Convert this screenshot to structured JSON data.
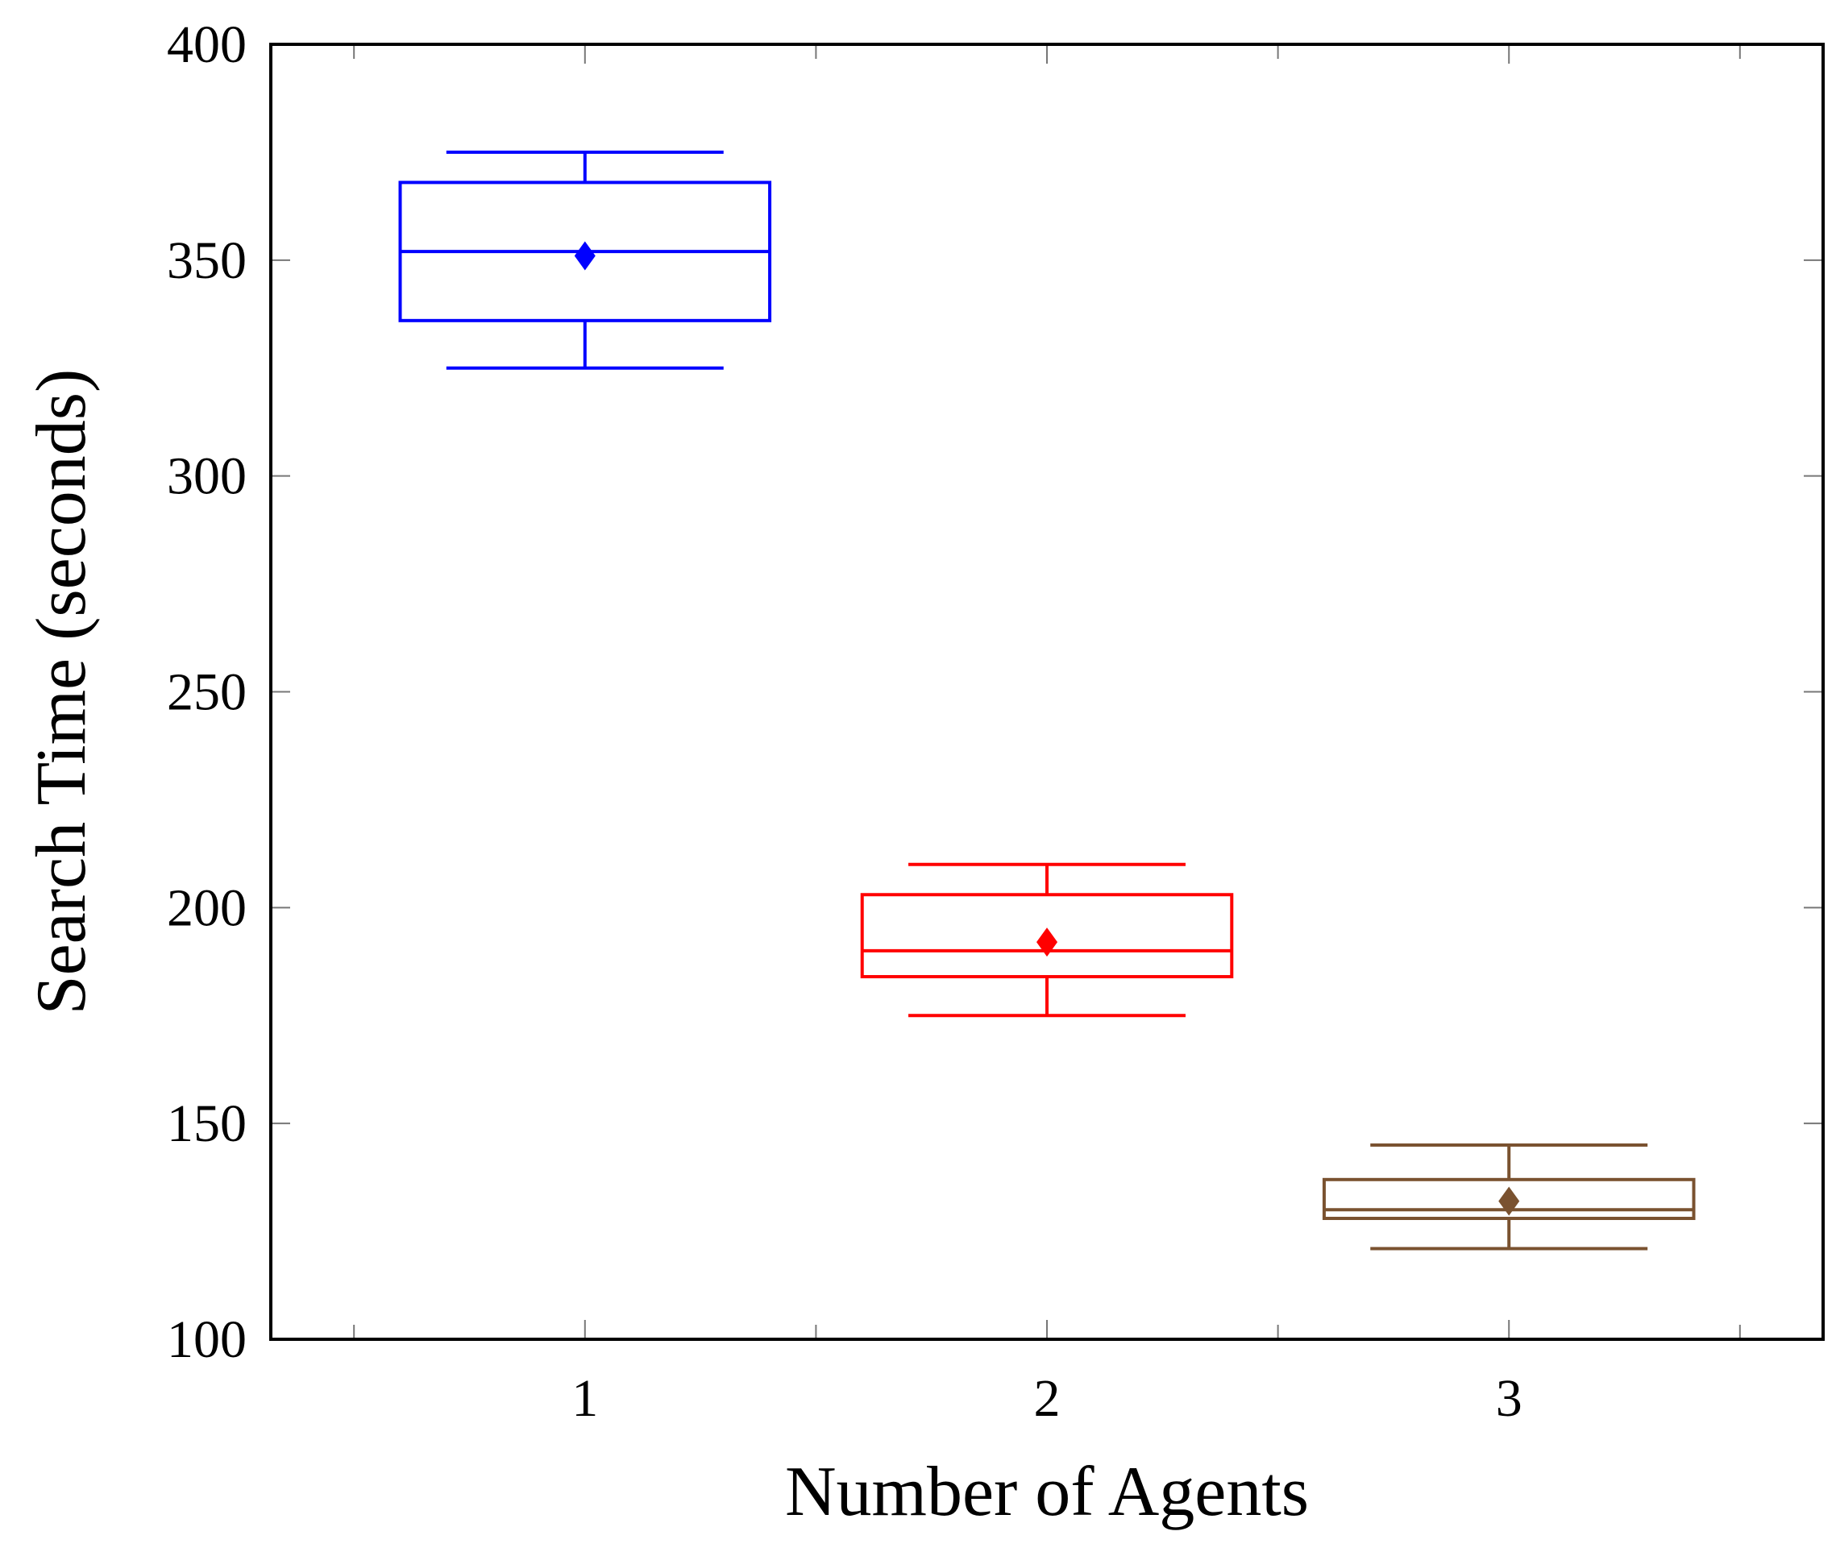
{
  "chart_data": {
    "type": "boxplot",
    "xlabel": "Number of Agents",
    "ylabel": "Search Time (seconds)",
    "ylim": [
      100,
      400
    ],
    "xlim": [
      0.32,
      3.68
    ],
    "yticks": [
      100,
      150,
      200,
      250,
      300,
      350,
      400
    ],
    "xticks": [
      1,
      2,
      3
    ],
    "minor_xticks": [
      0.5,
      1.5,
      2.5,
      3.5
    ],
    "grid": false,
    "series": [
      {
        "category": "1",
        "x": 1,
        "whisker_low": 325,
        "q1": 336,
        "median": 352,
        "q3": 368,
        "whisker_high": 375,
        "mean": 351,
        "color": "#0000ff"
      },
      {
        "category": "2",
        "x": 2,
        "whisker_low": 175,
        "q1": 184,
        "median": 190,
        "q3": 203,
        "whisker_high": 210,
        "mean": 192,
        "color": "#ff0000"
      },
      {
        "category": "3",
        "x": 3,
        "whisker_low": 121,
        "q1": 128,
        "median": 130,
        "q3": 137,
        "whisker_high": 145,
        "mean": 132,
        "color": "#7a5230"
      }
    ]
  }
}
